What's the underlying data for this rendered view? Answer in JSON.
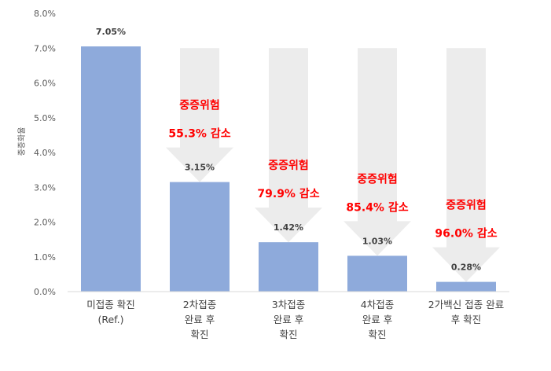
{
  "chart_data": {
    "type": "bar",
    "ylabel": "중증화율",
    "ylim": [
      0,
      8
    ],
    "yticks": [
      "0.0%",
      "1.0%",
      "2.0%",
      "3.0%",
      "4.0%",
      "5.0%",
      "6.0%",
      "7.0%",
      "8.0%"
    ],
    "grid": false,
    "colors": {
      "bar": "#8eaadb",
      "arrow": "#ececec",
      "annotation": "#ff0000",
      "text": "#404040"
    },
    "categories": [
      [
        "미접종 확진",
        "(Ref.)"
      ],
      [
        "2차접종",
        "완료 후",
        "확진"
      ],
      [
        "3차접종",
        "완료 후",
        "확진"
      ],
      [
        "4차접종",
        "완료 후",
        "확진"
      ],
      [
        "2가백신 접종 완료",
        "후 확진"
      ]
    ],
    "values": [
      7.05,
      3.15,
      1.42,
      1.03,
      0.28
    ],
    "data_labels": [
      "7.05%",
      "3.15%",
      "1.42%",
      "1.03%",
      "0.28%"
    ],
    "annotations": [
      null,
      [
        "중증위험",
        "55.3% 감소"
      ],
      [
        "중증위험",
        "79.9% 감소"
      ],
      [
        "중증위험",
        "85.4% 감소"
      ],
      [
        "중증위험",
        "96.0% 감소"
      ]
    ]
  }
}
